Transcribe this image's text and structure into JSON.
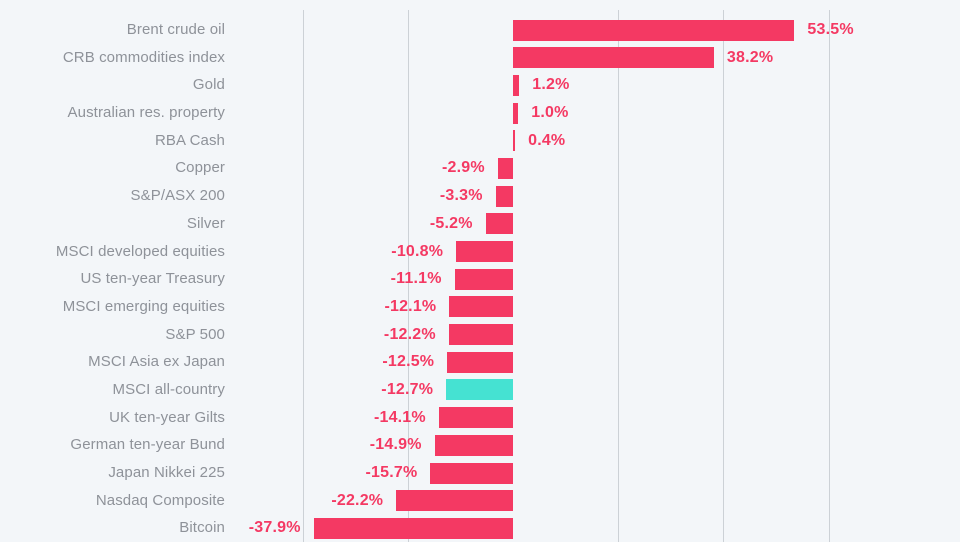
{
  "chart_data": {
    "type": "bar",
    "orientation": "horizontal",
    "categories": [
      "Brent crude oil",
      "CRB commodities index",
      "Gold",
      "Australian res. property",
      "RBA Cash",
      "Copper",
      "S&P/ASX 200",
      "Silver",
      "MSCI developed equities",
      "US ten-year Treasury",
      "MSCI emerging equities",
      "S&P 500",
      "MSCI Asia ex Japan",
      "MSCI all-country",
      "UK ten-year Gilts",
      "German ten-year Bund",
      "Japan Nikkei 225",
      "Nasdaq Composite",
      "Bitcoin"
    ],
    "values": [
      53.5,
      38.2,
      1.2,
      1.0,
      0.4,
      -2.9,
      -3.3,
      -5.2,
      -10.8,
      -11.1,
      -12.1,
      -12.2,
      -12.5,
      -12.7,
      -14.1,
      -14.9,
      -15.7,
      -22.2,
      -37.9
    ],
    "value_labels": [
      "53.5%",
      "38.2%",
      "1.2%",
      "1.0%",
      "0.4%",
      "-2.9%",
      "-3.3%",
      "-5.2%",
      "-10.8%",
      "-11.1%",
      "-12.1%",
      "-12.2%",
      "-12.5%",
      "-12.7%",
      "-14.1%",
      "-14.9%",
      "-15.7%",
      "-22.2%",
      "-37.9%"
    ],
    "highlight_index": 13,
    "highlight_category": "MSCI all-country",
    "gridline_values": [
      -40,
      -20,
      20,
      40,
      60
    ],
    "xlim": [
      -45,
      85
    ],
    "grid": true,
    "legend": false,
    "colors": {
      "bar": "#f43963",
      "highlight_bar": "#45e2d2",
      "value_label": "#f43963",
      "category_label": "#8e9299",
      "gridline": "#ccd1d6",
      "background": "#f3f6f9"
    }
  }
}
